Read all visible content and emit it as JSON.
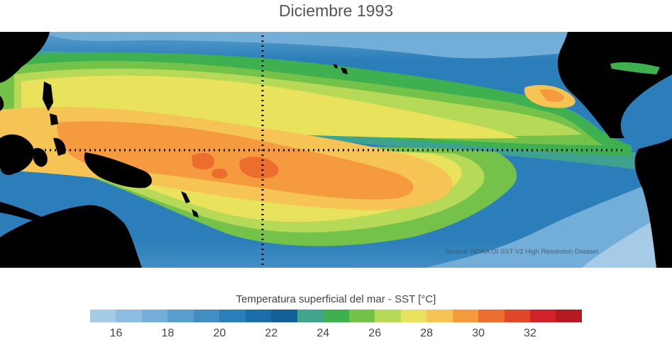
{
  "title": "Diciembre 1993",
  "map": {
    "source_credit": "Source: NOAA OI SST V2 High Resolution Dataset",
    "land_color": "#000000",
    "reference_lines_style": "dotted",
    "warm_pool_core_color": "#e85a2a"
  },
  "colorbar": {
    "label": "Temperatura superficial del mar - SST  [°C]",
    "colors": [
      "#a6cbe6",
      "#8dbde0",
      "#73aed8",
      "#5a9ece",
      "#418ec4",
      "#2b7eb9",
      "#1c6eaa",
      "#135f98",
      "#41a58c",
      "#3fb04f",
      "#74c24a",
      "#b6d957",
      "#e9e25d",
      "#f6c454",
      "#f59a3f",
      "#ec6e2e",
      "#e0462a",
      "#cf2229",
      "#b51a24"
    ],
    "min": 15,
    "step": 1,
    "ticks": [
      "16",
      "18",
      "20",
      "22",
      "24",
      "26",
      "28",
      "30",
      "32"
    ]
  }
}
